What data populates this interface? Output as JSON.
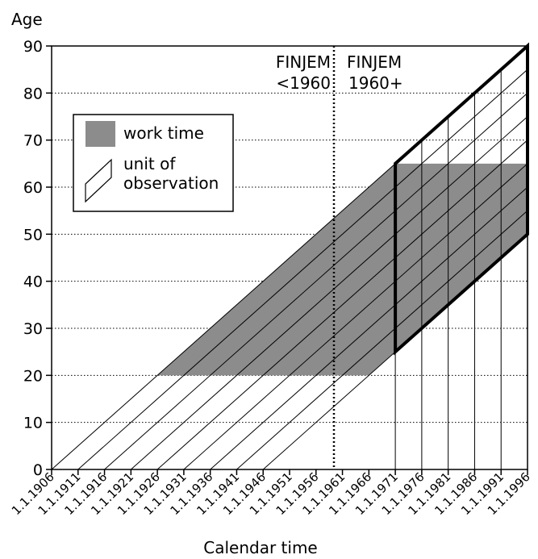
{
  "chart_data": {
    "type": "lexis-diagram",
    "title": "",
    "xlabel": "Calendar time",
    "ylabel": "Age",
    "x_ticks": [
      "1.1.1906",
      "1.1.1911",
      "1.1.1916",
      "1.1.1921",
      "1.1.1926",
      "1.1.1931",
      "1.1.1936",
      "1.1.1941",
      "1.1.1946",
      "1.1.1951",
      "1.1.1956",
      "1.1.1961",
      "1.1.1966",
      "1.1.1971",
      "1.1.1976",
      "1.1.1981",
      "1.1.1986",
      "1.1.1991",
      "1.1.1996"
    ],
    "xlim": [
      1906,
      1996
    ],
    "y_ticks": [
      "0",
      "10",
      "20",
      "30",
      "40",
      "50",
      "60",
      "70",
      "80",
      "90"
    ],
    "ylim": [
      0,
      90
    ],
    "grid": "horizontal dotted",
    "divider_year": 1960,
    "period_labels": [
      {
        "lines": [
          "FINJEM",
          "<1960"
        ],
        "side": "left"
      },
      {
        "lines": [
          "FINJEM",
          "1960+"
        ],
        "side": "right"
      }
    ],
    "work_time": {
      "age_from": 20,
      "age_to": 65
    },
    "cohort_birth_years": [
      1906,
      1911,
      1916,
      1921,
      1926,
      1931,
      1936,
      1941,
      1946
    ],
    "observation_window": {
      "from": 1971,
      "to": 1996,
      "vertical_lines": [
        1971,
        1976,
        1981,
        1986,
        1991,
        1996
      ]
    },
    "legend": {
      "placement": "left",
      "items": [
        {
          "key": "work-time",
          "lines": [
            "work time"
          ],
          "color": "#8c8c8c"
        },
        {
          "key": "unit-of-observation",
          "lines": [
            "unit of",
            "observation"
          ]
        }
      ]
    }
  }
}
